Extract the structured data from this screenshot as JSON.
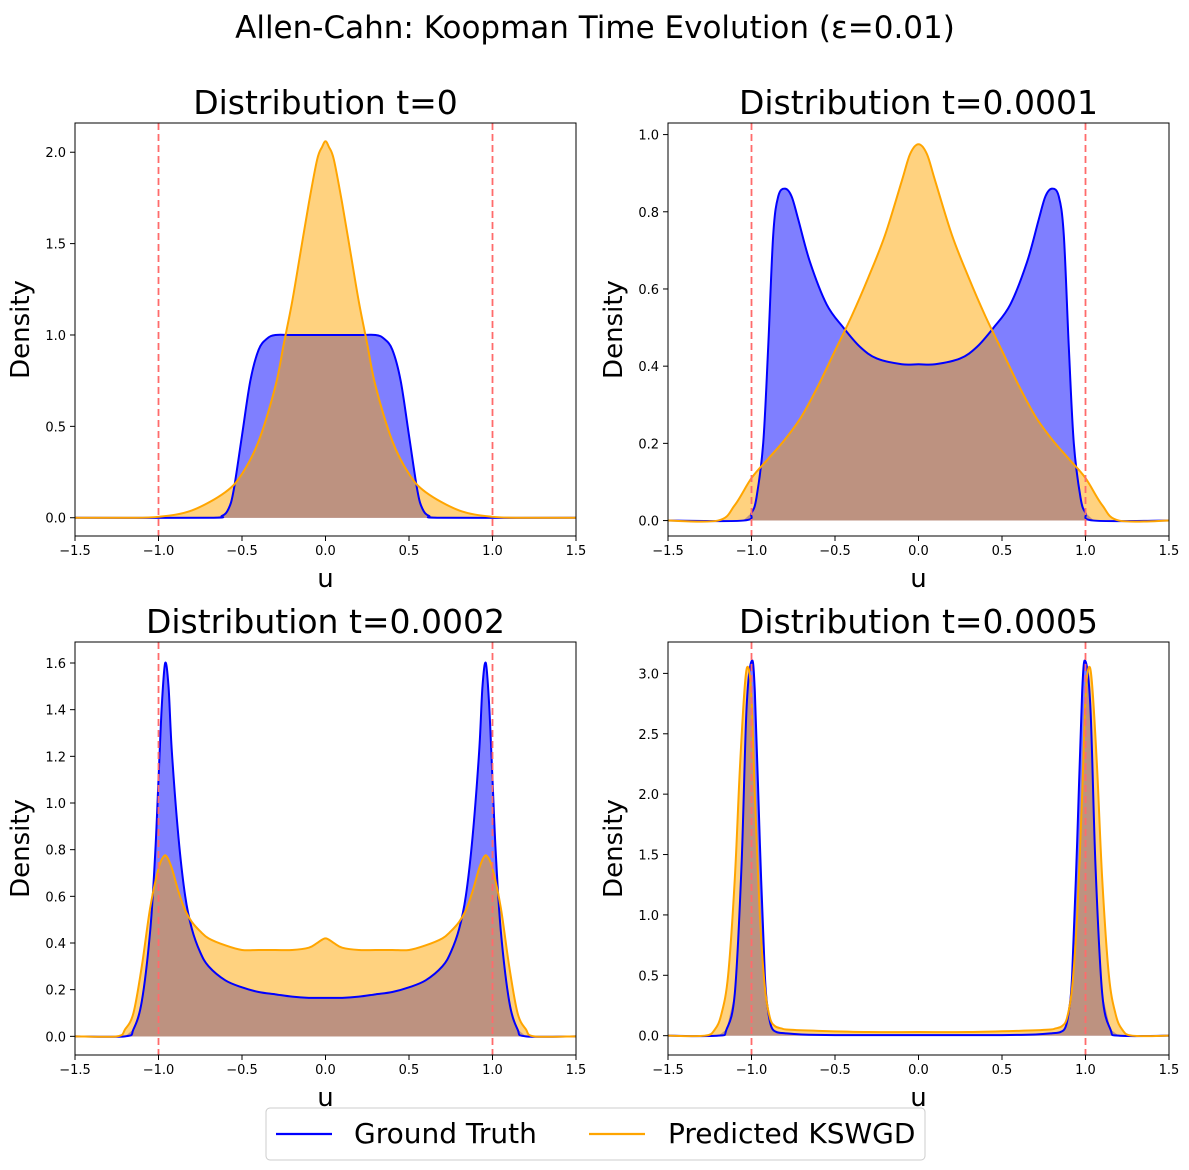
{
  "figure": {
    "suptitle": "Allen-Cahn: Koopman Time Evolution (ε=0.01)",
    "colors": {
      "ground_truth": "#0000ff",
      "predicted": "#ffa500",
      "boundary": "#ff6b6b",
      "overlap_fill": "#bd9280"
    },
    "legend": {
      "placement": "bottom-center",
      "items": [
        {
          "label": "Ground Truth",
          "color": "#0000ff"
        },
        {
          "label": "Predicted KSWGD",
          "color": "#ffa500"
        }
      ]
    }
  },
  "chart_data": [
    {
      "type": "area",
      "title": "Distribution t=0",
      "xlabel": "u",
      "ylabel": "Density",
      "xlim": [
        -1.5,
        1.5
      ],
      "ylim": [
        -0.1,
        2.16
      ],
      "xticks": [
        -1.5,
        -1.0,
        -0.5,
        0.0,
        0.5,
        1.0,
        1.5
      ],
      "xtick_labels": [
        "−1.5",
        "−1.0",
        "−0.5",
        "0.0",
        "0.5",
        "1.0",
        "1.5"
      ],
      "yticks": [
        0.0,
        0.5,
        1.0,
        1.5,
        2.0
      ],
      "ytick_labels": [
        "0.0",
        "0.5",
        "1.0",
        "1.5",
        "2.0"
      ],
      "vlines": [
        -1.0,
        1.0
      ],
      "series": [
        {
          "name": "Ground Truth",
          "x": [
            -1.5,
            -0.7,
            -0.62,
            -0.58,
            -0.55,
            -0.5,
            -0.45,
            -0.4,
            -0.35,
            -0.3,
            -0.2,
            0.0,
            0.2,
            0.3,
            0.35,
            0.4,
            0.45,
            0.5,
            0.55,
            0.58,
            0.62,
            0.7,
            1.5
          ],
          "y": [
            0.0,
            0.0,
            0.01,
            0.05,
            0.15,
            0.45,
            0.75,
            0.92,
            0.98,
            1.0,
            1.0,
            1.0,
            1.0,
            1.0,
            0.98,
            0.92,
            0.75,
            0.45,
            0.15,
            0.05,
            0.01,
            0.0,
            0.0
          ]
        },
        {
          "name": "Predicted KSWGD",
          "x": [
            -1.5,
            -1.2,
            -1.0,
            -0.8,
            -0.6,
            -0.5,
            -0.4,
            -0.3,
            -0.25,
            -0.2,
            -0.15,
            -0.1,
            -0.05,
            -0.02,
            0.0,
            0.02,
            0.05,
            0.1,
            0.15,
            0.2,
            0.25,
            0.3,
            0.4,
            0.5,
            0.6,
            0.8,
            1.0,
            1.2,
            1.5
          ],
          "y": [
            0.0,
            0.0,
            0.005,
            0.04,
            0.14,
            0.24,
            0.42,
            0.72,
            0.95,
            1.18,
            1.45,
            1.72,
            1.96,
            2.03,
            2.06,
            2.03,
            1.96,
            1.72,
            1.45,
            1.18,
            0.95,
            0.72,
            0.42,
            0.24,
            0.14,
            0.04,
            0.005,
            0.0,
            0.0
          ]
        }
      ]
    },
    {
      "type": "area",
      "title": "Distribution t=0.0001",
      "xlabel": "u",
      "ylabel": "Density",
      "xlim": [
        -1.5,
        1.5
      ],
      "ylim": [
        -0.04,
        1.03
      ],
      "xticks": [
        -1.5,
        -1.0,
        -0.5,
        0.0,
        0.5,
        1.0,
        1.5
      ],
      "xtick_labels": [
        "−1.5",
        "−1.0",
        "−0.5",
        "0.0",
        "0.5",
        "1.0",
        "1.5"
      ],
      "yticks": [
        0.0,
        0.2,
        0.4,
        0.6,
        0.8,
        1.0
      ],
      "ytick_labels": [
        "0.0",
        "0.2",
        "0.4",
        "0.6",
        "0.8",
        "1.0"
      ],
      "vlines": [
        -1.0,
        1.0
      ],
      "series": [
        {
          "name": "Ground Truth",
          "x": [
            -1.5,
            -1.05,
            -1.0,
            -0.97,
            -0.93,
            -0.9,
            -0.87,
            -0.84,
            -0.8,
            -0.76,
            -0.72,
            -0.65,
            -0.55,
            -0.45,
            -0.35,
            -0.25,
            -0.1,
            0.0,
            0.1,
            0.25,
            0.35,
            0.45,
            0.55,
            0.65,
            0.72,
            0.76,
            0.8,
            0.84,
            0.87,
            0.9,
            0.93,
            0.97,
            1.0,
            1.05,
            1.5
          ],
          "y": [
            0.0,
            0.0,
            0.02,
            0.06,
            0.2,
            0.45,
            0.74,
            0.84,
            0.86,
            0.84,
            0.78,
            0.67,
            0.56,
            0.5,
            0.45,
            0.42,
            0.405,
            0.405,
            0.405,
            0.42,
            0.45,
            0.5,
            0.56,
            0.67,
            0.78,
            0.84,
            0.86,
            0.84,
            0.74,
            0.45,
            0.2,
            0.06,
            0.02,
            0.0,
            0.0
          ]
        },
        {
          "name": "Predicted KSWGD",
          "x": [
            -1.5,
            -1.2,
            -1.1,
            -1.0,
            -0.9,
            -0.8,
            -0.7,
            -0.6,
            -0.5,
            -0.4,
            -0.3,
            -0.2,
            -0.1,
            -0.05,
            0.0,
            0.05,
            0.1,
            0.2,
            0.3,
            0.4,
            0.5,
            0.6,
            0.7,
            0.8,
            0.9,
            1.0,
            1.1,
            1.2,
            1.5
          ],
          "y": [
            0.0,
            0.0,
            0.04,
            0.11,
            0.16,
            0.21,
            0.27,
            0.35,
            0.44,
            0.53,
            0.63,
            0.74,
            0.88,
            0.95,
            0.975,
            0.95,
            0.88,
            0.74,
            0.63,
            0.53,
            0.44,
            0.35,
            0.27,
            0.21,
            0.16,
            0.11,
            0.04,
            0.0,
            0.0
          ]
        }
      ]
    },
    {
      "type": "area",
      "title": "Distribution t=0.0002",
      "xlabel": "u",
      "ylabel": "Density",
      "xlim": [
        -1.5,
        1.5
      ],
      "ylim": [
        -0.08,
        1.69
      ],
      "xticks": [
        -1.5,
        -1.0,
        -0.5,
        0.0,
        0.5,
        1.0,
        1.5
      ],
      "xtick_labels": [
        "−1.5",
        "−1.0",
        "−0.5",
        "0.0",
        "0.5",
        "1.0",
        "1.5"
      ],
      "yticks": [
        0.0,
        0.2,
        0.4,
        0.6,
        0.8,
        1.0,
        1.2,
        1.4,
        1.6
      ],
      "ytick_labels": [
        "0.0",
        "0.2",
        "0.4",
        "0.6",
        "0.8",
        "1.0",
        "1.2",
        "1.4",
        "1.6"
      ],
      "vlines": [
        -1.0,
        1.0
      ],
      "series": [
        {
          "name": "Ground Truth",
          "x": [
            -1.5,
            -1.2,
            -1.15,
            -1.1,
            -1.05,
            -1.02,
            -1.0,
            -0.98,
            -0.96,
            -0.94,
            -0.92,
            -0.88,
            -0.84,
            -0.8,
            -0.75,
            -0.7,
            -0.6,
            -0.5,
            -0.4,
            -0.3,
            -0.2,
            -0.1,
            0.0,
            0.1,
            0.2,
            0.3,
            0.4,
            0.5,
            0.6,
            0.7,
            0.75,
            0.8,
            0.84,
            0.88,
            0.92,
            0.94,
            0.96,
            0.98,
            1.0,
            1.02,
            1.05,
            1.1,
            1.15,
            1.2,
            1.5
          ],
          "y": [
            0.0,
            0.0,
            0.03,
            0.15,
            0.45,
            0.78,
            1.1,
            1.42,
            1.6,
            1.5,
            1.22,
            0.85,
            0.6,
            0.46,
            0.36,
            0.3,
            0.24,
            0.21,
            0.19,
            0.18,
            0.17,
            0.165,
            0.165,
            0.165,
            0.17,
            0.18,
            0.19,
            0.21,
            0.24,
            0.3,
            0.36,
            0.46,
            0.6,
            0.85,
            1.22,
            1.5,
            1.6,
            1.42,
            1.1,
            0.78,
            0.45,
            0.15,
            0.03,
            0.0,
            0.0
          ]
        },
        {
          "name": "Predicted KSWGD",
          "x": [
            -1.5,
            -1.25,
            -1.2,
            -1.15,
            -1.1,
            -1.05,
            -1.0,
            -0.97,
            -0.95,
            -0.92,
            -0.88,
            -0.84,
            -0.8,
            -0.75,
            -0.7,
            -0.6,
            -0.5,
            -0.4,
            -0.3,
            -0.2,
            -0.1,
            -0.05,
            0.0,
            0.05,
            0.1,
            0.2,
            0.3,
            0.4,
            0.5,
            0.6,
            0.7,
            0.75,
            0.8,
            0.84,
            0.88,
            0.92,
            0.95,
            0.97,
            1.0,
            1.05,
            1.1,
            1.15,
            1.2,
            1.25,
            1.5
          ],
          "y": [
            0.0,
            0.0,
            0.03,
            0.1,
            0.3,
            0.55,
            0.72,
            0.77,
            0.77,
            0.72,
            0.62,
            0.54,
            0.49,
            0.45,
            0.42,
            0.39,
            0.37,
            0.37,
            0.37,
            0.37,
            0.38,
            0.4,
            0.42,
            0.4,
            0.38,
            0.37,
            0.37,
            0.37,
            0.37,
            0.39,
            0.42,
            0.45,
            0.49,
            0.54,
            0.62,
            0.72,
            0.77,
            0.77,
            0.72,
            0.55,
            0.3,
            0.1,
            0.03,
            0.0,
            0.0
          ]
        }
      ]
    },
    {
      "type": "area",
      "title": "Distribution t=0.0005",
      "xlabel": "u",
      "ylabel": "Density",
      "xlim": [
        -1.5,
        1.5
      ],
      "ylim": [
        -0.16,
        3.26
      ],
      "xticks": [
        -1.5,
        -1.0,
        -0.5,
        0.0,
        0.5,
        1.0,
        1.5
      ],
      "xtick_labels": [
        "−1.5",
        "−1.0",
        "−0.5",
        "0.0",
        "0.5",
        "1.0",
        "1.5"
      ],
      "yticks": [
        0.0,
        0.5,
        1.0,
        1.5,
        2.0,
        2.5,
        3.0
      ],
      "ytick_labels": [
        "0.0",
        "0.5",
        "1.0",
        "1.5",
        "2.0",
        "2.5",
        "3.0"
      ],
      "vlines": [
        -1.0,
        1.0
      ],
      "series": [
        {
          "name": "Ground Truth",
          "x": [
            -1.5,
            -1.2,
            -1.15,
            -1.1,
            -1.06,
            -1.03,
            -1.0,
            -0.98,
            -0.95,
            -0.92,
            -0.9,
            -0.88,
            -0.85,
            -0.8,
            -0.7,
            -0.5,
            0.0,
            0.5,
            0.7,
            0.8,
            0.85,
            0.88,
            0.9,
            0.92,
            0.95,
            0.98,
            1.0,
            1.03,
            1.06,
            1.1,
            1.15,
            1.2,
            1.5
          ],
          "y": [
            0.0,
            0.0,
            0.05,
            0.35,
            1.4,
            2.7,
            3.1,
            2.85,
            1.6,
            0.5,
            0.2,
            0.07,
            0.03,
            0.02,
            0.01,
            0.005,
            0.005,
            0.005,
            0.01,
            0.02,
            0.03,
            0.07,
            0.2,
            0.5,
            1.6,
            2.85,
            3.1,
            2.7,
            1.4,
            0.35,
            0.05,
            0.0,
            0.0
          ]
        },
        {
          "name": "Predicted KSWGD",
          "x": [
            -1.5,
            -1.28,
            -1.22,
            -1.18,
            -1.14,
            -1.1,
            -1.07,
            -1.04,
            -1.02,
            -1.0,
            -0.98,
            -0.95,
            -0.92,
            -0.89,
            -0.86,
            -0.82,
            -0.78,
            -0.6,
            -0.3,
            0.0,
            0.3,
            0.6,
            0.78,
            0.82,
            0.86,
            0.89,
            0.92,
            0.95,
            0.98,
            1.0,
            1.02,
            1.04,
            1.07,
            1.1,
            1.14,
            1.18,
            1.22,
            1.28,
            1.5
          ],
          "y": [
            0.0,
            0.0,
            0.05,
            0.18,
            0.5,
            1.3,
            2.2,
            2.9,
            3.05,
            2.8,
            2.0,
            1.0,
            0.4,
            0.15,
            0.08,
            0.06,
            0.05,
            0.04,
            0.03,
            0.03,
            0.03,
            0.04,
            0.05,
            0.06,
            0.08,
            0.15,
            0.4,
            1.0,
            2.0,
            2.8,
            3.05,
            2.9,
            2.2,
            1.3,
            0.5,
            0.18,
            0.05,
            0.0,
            0.0
          ]
        }
      ]
    }
  ]
}
